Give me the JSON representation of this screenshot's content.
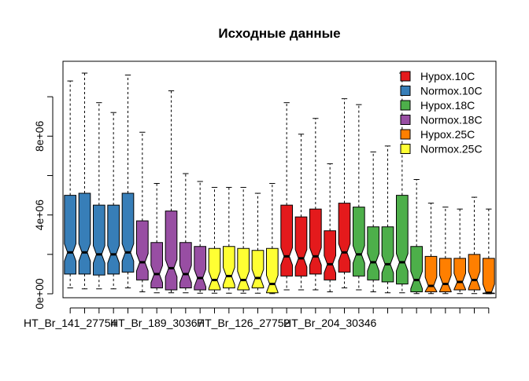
{
  "chart_data": {
    "type": "box",
    "title": "Исходные данные",
    "xlabel": "",
    "ylabel": "",
    "ylim": [
      -200000,
      11800000
    ],
    "y_ticks": [
      {
        "value": 0,
        "label": "0e+00"
      },
      {
        "value": 2000000,
        "label": ""
      },
      {
        "value": 4000000,
        "label": "4e+06"
      },
      {
        "value": 6000000,
        "label": ""
      },
      {
        "value": 8000000,
        "label": "8e+06"
      },
      {
        "value": 10000000,
        "label": ""
      }
    ],
    "x_tick_labels": [
      {
        "index": 1,
        "label": "HT_Br_141_27754"
      },
      {
        "index": 7,
        "label": "HT_Br_189_30367"
      },
      {
        "index": 13,
        "label": "HT_Br_126_27752"
      },
      {
        "index": 19,
        "label": "HT_Br_204_30346"
      }
    ],
    "legend": {
      "position": "top-right",
      "entries": [
        {
          "label": "Hypox.10C",
          "color": "#E41A1C"
        },
        {
          "label": "Normox.10C",
          "color": "#377EB8"
        },
        {
          "label": "Hypox.18C",
          "color": "#4DAF4A"
        },
        {
          "label": "Normox.18C",
          "color": "#984EA3"
        },
        {
          "label": "Hypox.25C",
          "color": "#FF7F00"
        },
        {
          "label": "Normox.25C",
          "color": "#FFFF33"
        }
      ]
    },
    "boxes": [
      {
        "group": "Normox.10C",
        "color": "#377EB8",
        "whisker_low": 300000,
        "q1": 1000000,
        "median": 2100000,
        "q3": 5000000,
        "whisker_high": 10800000
      },
      {
        "group": "Normox.10C",
        "color": "#377EB8",
        "whisker_low": 250000,
        "q1": 1000000,
        "median": 2100000,
        "q3": 5100000,
        "whisker_high": 11200000
      },
      {
        "group": "Normox.10C",
        "color": "#377EB8",
        "whisker_low": 250000,
        "q1": 950000,
        "median": 2000000,
        "q3": 4500000,
        "whisker_high": 9700000
      },
      {
        "group": "Normox.10C",
        "color": "#377EB8",
        "whisker_low": 250000,
        "q1": 1000000,
        "median": 2000000,
        "q3": 4500000,
        "whisker_high": 9200000
      },
      {
        "group": "Normox.10C",
        "color": "#377EB8",
        "whisker_low": 300000,
        "q1": 1100000,
        "median": 2100000,
        "q3": 5100000,
        "whisker_high": 11100000
      },
      {
        "group": "Normox.18C",
        "color": "#984EA3",
        "whisker_low": 100000,
        "q1": 700000,
        "median": 1600000,
        "q3": 3700000,
        "whisker_high": 8200000
      },
      {
        "group": "Normox.18C",
        "color": "#984EA3",
        "whisker_low": 50000,
        "q1": 300000,
        "median": 1000000,
        "q3": 2600000,
        "whisker_high": 5600000
      },
      {
        "group": "Normox.18C",
        "color": "#984EA3",
        "whisker_low": 50000,
        "q1": 200000,
        "median": 1300000,
        "q3": 4200000,
        "whisker_high": 10300000
      },
      {
        "group": "Normox.18C",
        "color": "#984EA3",
        "whisker_low": 50000,
        "q1": 300000,
        "median": 1000000,
        "q3": 2600000,
        "whisker_high": 6100000
      },
      {
        "group": "Normox.18C",
        "color": "#984EA3",
        "whisker_low": 30000,
        "q1": 200000,
        "median": 800000,
        "q3": 2400000,
        "whisker_high": 5700000
      },
      {
        "group": "Normox.25C",
        "color": "#FFFF33",
        "whisker_low": 30000,
        "q1": 200000,
        "median": 700000,
        "q3": 2300000,
        "whisker_high": 5400000
      },
      {
        "group": "Normox.25C",
        "color": "#FFFF33",
        "whisker_low": 30000,
        "q1": 300000,
        "median": 900000,
        "q3": 2400000,
        "whisker_high": 5400000
      },
      {
        "group": "Normox.25C",
        "color": "#FFFF33",
        "whisker_low": 30000,
        "q1": 200000,
        "median": 700000,
        "q3": 2300000,
        "whisker_high": 5400000
      },
      {
        "group": "Normox.25C",
        "color": "#FFFF33",
        "whisker_low": 30000,
        "q1": 300000,
        "median": 800000,
        "q3": 2200000,
        "whisker_high": 5100000
      },
      {
        "group": "Normox.25C",
        "color": "#FFFF33",
        "whisker_low": 10000,
        "q1": 50000,
        "median": 500000,
        "q3": 2300000,
        "whisker_high": 5600000
      },
      {
        "group": "Hypox.10C",
        "color": "#E41A1C",
        "whisker_low": 200000,
        "q1": 900000,
        "median": 1900000,
        "q3": 4500000,
        "whisker_high": 9700000
      },
      {
        "group": "Hypox.10C",
        "color": "#E41A1C",
        "whisker_low": 200000,
        "q1": 900000,
        "median": 1800000,
        "q3": 3900000,
        "whisker_high": 8100000
      },
      {
        "group": "Hypox.10C",
        "color": "#E41A1C",
        "whisker_low": 200000,
        "q1": 1000000,
        "median": 1900000,
        "q3": 4300000,
        "whisker_high": 8900000
      },
      {
        "group": "Hypox.10C",
        "color": "#E41A1C",
        "whisker_low": 100000,
        "q1": 700000,
        "median": 1500000,
        "q3": 3200000,
        "whisker_high": 6600000
      },
      {
        "group": "Hypox.10C",
        "color": "#E41A1C",
        "whisker_low": 300000,
        "q1": 1100000,
        "median": 2100000,
        "q3": 4600000,
        "whisker_high": 9900000
      },
      {
        "group": "Hypox.18C",
        "color": "#4DAF4A",
        "whisker_low": 200000,
        "q1": 900000,
        "median": 2000000,
        "q3": 4400000,
        "whisker_high": 9600000
      },
      {
        "group": "Hypox.18C",
        "color": "#4DAF4A",
        "whisker_low": 100000,
        "q1": 700000,
        "median": 1600000,
        "q3": 3400000,
        "whisker_high": 7200000
      },
      {
        "group": "Hypox.18C",
        "color": "#4DAF4A",
        "whisker_low": 50000,
        "q1": 600000,
        "median": 1500000,
        "q3": 3400000,
        "whisker_high": 7500000
      },
      {
        "group": "Hypox.18C",
        "color": "#4DAF4A",
        "whisker_low": 50000,
        "q1": 500000,
        "median": 1600000,
        "q3": 5000000,
        "whisker_high": 11200000
      },
      {
        "group": "Hypox.18C",
        "color": "#4DAF4A",
        "whisker_low": 10000,
        "q1": 100000,
        "median": 700000,
        "q3": 2400000,
        "whisker_high": 5800000
      },
      {
        "group": "Hypox.25C",
        "color": "#FF7F00",
        "whisker_low": 10000,
        "q1": 100000,
        "median": 400000,
        "q3": 1900000,
        "whisker_high": 4600000
      },
      {
        "group": "Hypox.25C",
        "color": "#FF7F00",
        "whisker_low": 10000,
        "q1": 100000,
        "median": 500000,
        "q3": 1800000,
        "whisker_high": 4400000
      },
      {
        "group": "Hypox.25C",
        "color": "#FF7F00",
        "whisker_low": 10000,
        "q1": 200000,
        "median": 600000,
        "q3": 1800000,
        "whisker_high": 4300000
      },
      {
        "group": "Hypox.25C",
        "color": "#FF7F00",
        "whisker_low": 10000,
        "q1": 200000,
        "median": 700000,
        "q3": 2000000,
        "whisker_high": 4900000
      },
      {
        "group": "Hypox.25C",
        "color": "#FF7F00",
        "whisker_low": 5000,
        "q1": 10000,
        "median": 50000,
        "q3": 1800000,
        "whisker_high": 4300000
      }
    ]
  }
}
